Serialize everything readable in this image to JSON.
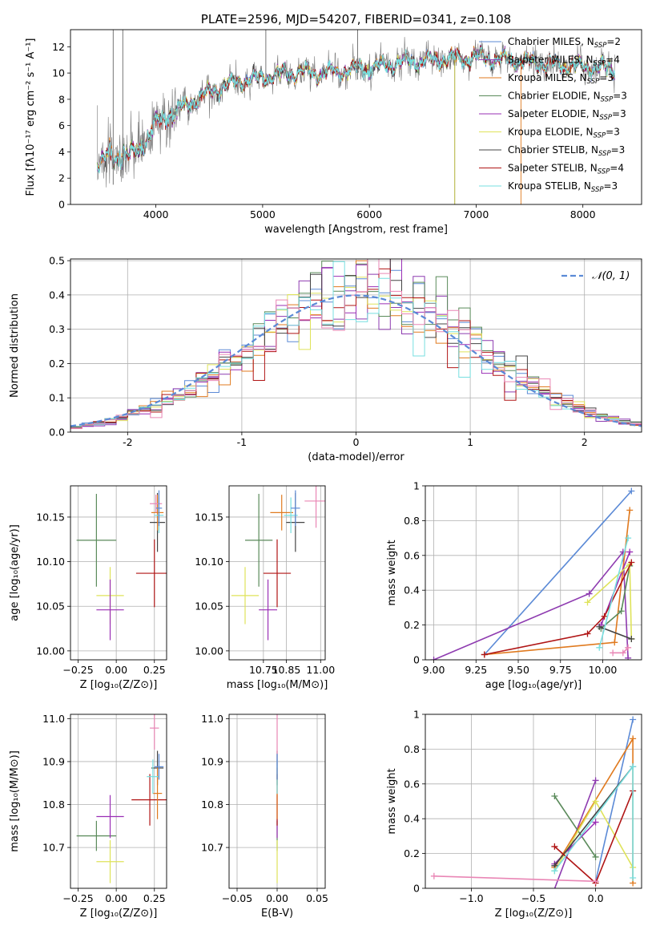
{
  "colors": {
    "Chabrier MILES": "#5b8ad6",
    "Salpeter MILES": "#8e3bb0",
    "Kroupa MILES": "#e07a1f",
    "Chabrier ELODIE": "#5a8a5a",
    "Salpeter ELODIE": "#9a2fb5",
    "Kroupa ELODIE": "#dfe35a",
    "Chabrier STELIB": "#444444",
    "Salpeter STELIB": "#b01515",
    "Kroupa STELIB": "#77dfe0",
    "pink": "#e986b5",
    "normal": "#5b8ad6",
    "spectrum": "#7a7a7a"
  },
  "chart_data": [
    {
      "id": "spectrum",
      "type": "line",
      "title": "PLATE=2596, MJD=54207, FIBERID=0341, z=0.108",
      "xlabel": "wavelength [Angstrom, rest frame]",
      "ylabel": "Flux [fλ10⁻¹⁷ erg cm⁻² s⁻¹ A⁻¹]",
      "xlim": [
        3200,
        8550
      ],
      "ylim": [
        0,
        13.3
      ],
      "xticks": [
        4000,
        5000,
        6000,
        7000,
        8000
      ],
      "yticks": [
        0,
        2,
        4,
        6,
        8,
        10,
        12
      ],
      "legend_position": "right",
      "legend": [
        {
          "label": "Chabrier MILES, N",
          "sub": "SSP",
          "suffix": "=2",
          "color": "#5b8ad6"
        },
        {
          "label": "Salpeter MILES, N",
          "sub": "SSP",
          "suffix": "=4",
          "color": "#8e3bb0"
        },
        {
          "label": "Kroupa MILES, N",
          "sub": "SSP",
          "suffix": "=3",
          "color": "#e07a1f"
        },
        {
          "label": "Chabrier ELODIE, N",
          "sub": "SSP",
          "suffix": "=3",
          "color": "#5a8a5a"
        },
        {
          "label": "Salpeter ELODIE, N",
          "sub": "SSP",
          "suffix": "=3",
          "color": "#9a2fb5"
        },
        {
          "label": "Kroupa ELODIE, N",
          "sub": "SSP",
          "suffix": "=3",
          "color": "#dfe35a"
        },
        {
          "label": "Chabrier STELIB, N",
          "sub": "SSP",
          "suffix": "=3",
          "color": "#444444"
        },
        {
          "label": "Salpeter STELIB, N",
          "sub": "SSP",
          "suffix": "=4",
          "color": "#b01515"
        },
        {
          "label": "Kroupa STELIB, N",
          "sub": "SSP",
          "suffix": "=3",
          "color": "#77dfe0"
        }
      ],
      "continuum": {
        "wavelength": [
          3450,
          3600,
          3800,
          3900,
          4000,
          4200,
          4400,
          4600,
          4800,
          5000,
          5200,
          5500,
          5800,
          6000,
          6300,
          6600,
          7000,
          7400,
          7800,
          8300
        ],
        "flux": [
          3.3,
          3.6,
          3.8,
          4.8,
          6.2,
          7.2,
          8.1,
          8.9,
          9.4,
          9.6,
          10.0,
          10.0,
          10.2,
          10.4,
          10.8,
          11.0,
          11.2,
          10.9,
          10.6,
          10.3
        ]
      }
    },
    {
      "id": "residuals",
      "type": "line",
      "xlabel": "(data-model)/error",
      "ylabel": "Normed distribution",
      "xlim": [
        -2.5,
        2.5
      ],
      "ylim": [
        0,
        0.505
      ],
      "xticks": [
        -2,
        -1,
        0,
        1,
        2
      ],
      "yticks": [
        0.0,
        0.1,
        0.2,
        0.3,
        0.4,
        0.5
      ],
      "bin_width": 0.1,
      "legend": "𝒩(0, 1)",
      "legend_position": "top-right"
    },
    {
      "id": "age_vs_Z",
      "type": "scatter",
      "xlabel": "Z [log₁₀(Z/Z⊙)]",
      "ylabel": "age  [log₁₀(age/yr)]",
      "xlim": [
        -0.3,
        0.33
      ],
      "ylim": [
        9.99,
        10.185
      ],
      "xticks": [
        -0.25,
        0.0,
        0.25
      ],
      "xticklabels": [
        "−0.25",
        "0.00",
        "0.25"
      ],
      "yticks": [
        10.0,
        10.05,
        10.1,
        10.15
      ],
      "yticklabels": [
        "10.00",
        "10.05",
        "10.10",
        "10.15"
      ],
      "points": [
        {
          "x": -0.13,
          "y": 10.124,
          "xerr": 0.13,
          "yerr": 0.052,
          "color": "#5a8a5a"
        },
        {
          "x": -0.04,
          "y": 10.062,
          "xerr": 0.09,
          "yerr": 0.032,
          "color": "#dfe35a"
        },
        {
          "x": -0.04,
          "y": 10.046,
          "xerr": 0.09,
          "yerr": 0.034,
          "color": "#9a2fb5"
        },
        {
          "x": 0.25,
          "y": 10.087,
          "xerr": 0.12,
          "yerr": 0.038,
          "color": "#b01515"
        },
        {
          "x": 0.27,
          "y": 10.144,
          "xerr": 0.05,
          "yerr": 0.033,
          "color": "#444444"
        },
        {
          "x": 0.27,
          "y": 10.155,
          "xerr": 0.04,
          "yerr": 0.02,
          "color": "#e07a1f"
        },
        {
          "x": 0.26,
          "y": 10.165,
          "xerr": 0.04,
          "yerr": 0.01,
          "color": "#e986b5"
        },
        {
          "x": 0.28,
          "y": 10.152,
          "xerr": 0.03,
          "yerr": 0.02,
          "color": "#77dfe0"
        },
        {
          "x": 0.28,
          "y": 10.16,
          "xerr": 0.02,
          "yerr": 0.02,
          "color": "#5b8ad6"
        }
      ]
    },
    {
      "id": "age_vs_mass",
      "type": "scatter",
      "xlabel": "mass [log₁₀(M/M⊙)]",
      "ylabel": "",
      "xlim": [
        10.6,
        11.02
      ],
      "ylim": [
        9.99,
        10.185
      ],
      "xticks": [
        10.75,
        10.85,
        11.0
      ],
      "xticklabels": [
        "10.75",
        "10.85",
        "11.00"
      ],
      "yticks": [
        10.0,
        10.05,
        10.1,
        10.15
      ],
      "yticklabels": [
        "10.00",
        "10.05",
        "10.10",
        "10.15"
      ],
      "points": [
        {
          "x": 10.73,
          "y": 10.124,
          "xerr": 0.06,
          "yerr": 0.052,
          "color": "#5a8a5a"
        },
        {
          "x": 10.67,
          "y": 10.062,
          "xerr": 0.06,
          "yerr": 0.032,
          "color": "#dfe35a"
        },
        {
          "x": 10.77,
          "y": 10.046,
          "xerr": 0.04,
          "yerr": 0.034,
          "color": "#9a2fb5"
        },
        {
          "x": 10.81,
          "y": 10.087,
          "xerr": 0.06,
          "yerr": 0.038,
          "color": "#b01515"
        },
        {
          "x": 10.89,
          "y": 10.144,
          "xerr": 0.04,
          "yerr": 0.033,
          "color": "#444444"
        },
        {
          "x": 10.83,
          "y": 10.155,
          "xerr": 0.05,
          "yerr": 0.02,
          "color": "#e07a1f"
        },
        {
          "x": 10.98,
          "y": 10.168,
          "xerr": 0.05,
          "yerr": 0.03,
          "color": "#e986b5"
        },
        {
          "x": 10.87,
          "y": 10.152,
          "xerr": 0.03,
          "yerr": 0.02,
          "color": "#77dfe0"
        },
        {
          "x": 10.89,
          "y": 10.16,
          "xerr": 0.02,
          "yerr": 0.02,
          "color": "#5b8ad6"
        }
      ]
    },
    {
      "id": "mass_weight_vs_age",
      "type": "line",
      "xlabel": "age  [log₁₀(age/yr)]",
      "ylabel": "mass weight",
      "xlim": [
        8.95,
        10.23
      ],
      "ylim": [
        0,
        1.0
      ],
      "xticks": [
        9.0,
        9.25,
        9.5,
        9.75,
        10.0
      ],
      "xticklabels": [
        "9.00",
        "9.25",
        "9.50",
        "9.75",
        "10.00"
      ],
      "yticks": [
        0.0,
        0.2,
        0.4,
        0.6,
        0.8,
        1.0
      ],
      "series": [
        {
          "color": "#5b8ad6",
          "x": [
            9.3,
            10.17
          ],
          "y": [
            0.03,
            0.97
          ]
        },
        {
          "color": "#8e3bb0",
          "x": [
            9.0,
            9.92,
            10.12,
            10.15
          ],
          "y": [
            0.0,
            0.38,
            0.62,
            0.01
          ]
        },
        {
          "color": "#e07a1f",
          "x": [
            9.3,
            10.07,
            10.16
          ],
          "y": [
            0.03,
            0.1,
            0.86
          ]
        },
        {
          "color": "#5a8a5a",
          "x": [
            9.99,
            10.11,
            10.16
          ],
          "y": [
            0.18,
            0.28,
            0.54
          ]
        },
        {
          "color": "#9a2fb5",
          "x": [
            9.99,
            10.16
          ],
          "y": [
            0.2,
            0.62
          ]
        },
        {
          "color": "#dfe35a",
          "x": [
            9.91,
            10.16,
            10.17
          ],
          "y": [
            0.33,
            0.55,
            0.12
          ]
        },
        {
          "color": "#444444",
          "x": [
            9.98,
            10.17
          ],
          "y": [
            0.19,
            0.12
          ]
        },
        {
          "color": "#b01515",
          "x": [
            9.3,
            9.91,
            10.01,
            10.17
          ],
          "y": [
            0.03,
            0.15,
            0.25,
            0.56
          ]
        },
        {
          "color": "#77dfe0",
          "x": [
            9.98,
            10.15
          ],
          "y": [
            0.07,
            0.7
          ]
        },
        {
          "color": "#e986b5",
          "x": [
            10.06,
            10.12,
            10.15
          ],
          "y": [
            0.04,
            0.04,
            0.07
          ]
        }
      ]
    },
    {
      "id": "mass_vs_Z",
      "type": "scatter",
      "xlabel": "Z [log₁₀(Z/Z⊙)]",
      "ylabel": "mass [log₁₀(M/M⊙)]",
      "xlim": [
        -0.3,
        0.33
      ],
      "ylim": [
        10.605,
        11.01
      ],
      "xticks": [
        -0.25,
        0.0,
        0.25
      ],
      "xticklabels": [
        "−0.25",
        "0.00",
        "0.25"
      ],
      "yticks": [
        10.7,
        10.8,
        10.9,
        11.0
      ],
      "yticklabels": [
        "10.7",
        "10.8",
        "10.9",
        "11.0"
      ],
      "points": [
        {
          "x": -0.13,
          "y": 10.727,
          "xerr": 0.13,
          "yerr": 0.035,
          "color": "#5a8a5a"
        },
        {
          "x": -0.04,
          "y": 10.667,
          "xerr": 0.09,
          "yerr": 0.05,
          "color": "#dfe35a"
        },
        {
          "x": -0.04,
          "y": 10.772,
          "xerr": 0.09,
          "yerr": 0.05,
          "color": "#9a2fb5"
        },
        {
          "x": 0.22,
          "y": 10.811,
          "xerr": 0.12,
          "yerr": 0.06,
          "color": "#b01515"
        },
        {
          "x": 0.27,
          "y": 10.885,
          "xerr": 0.04,
          "yerr": 0.04,
          "color": "#444444"
        },
        {
          "x": 0.27,
          "y": 10.826,
          "xerr": 0.03,
          "yerr": 0.06,
          "color": "#e07a1f"
        },
        {
          "x": 0.25,
          "y": 10.978,
          "xerr": 0.03,
          "yerr": 0.05,
          "color": "#e986b5"
        },
        {
          "x": 0.24,
          "y": 10.865,
          "xerr": 0.04,
          "yerr": 0.04,
          "color": "#77dfe0"
        },
        {
          "x": 0.28,
          "y": 10.888,
          "xerr": 0.03,
          "yerr": 0.03,
          "color": "#5b8ad6"
        }
      ]
    },
    {
      "id": "mass_vs_EBV",
      "type": "scatter",
      "xlabel": "E(B-V)",
      "ylabel": "",
      "xlim": [
        -0.06,
        0.06
      ],
      "ylim": [
        10.605,
        11.01
      ],
      "xticks": [
        -0.05,
        0.0,
        0.05
      ],
      "xticklabels": [
        "−0.05",
        "0.00",
        "0.05"
      ],
      "yticks": [
        10.7,
        10.8,
        10.9,
        11.0
      ],
      "yticklabels": [
        "10.7",
        "10.8",
        "10.9",
        "11.0"
      ],
      "points": [
        {
          "x": 0.0,
          "y": 10.727,
          "xerr": 0,
          "yerr": 0.035,
          "color": "#5a8a5a"
        },
        {
          "x": 0.0,
          "y": 10.667,
          "xerr": 0,
          "yerr": 0.05,
          "color": "#dfe35a"
        },
        {
          "x": 0.0,
          "y": 10.772,
          "xerr": 0,
          "yerr": 0.05,
          "color": "#9a2fb5"
        },
        {
          "x": 0.0,
          "y": 10.811,
          "xerr": 0,
          "yerr": 0.06,
          "color": "#b01515"
        },
        {
          "x": 0.0,
          "y": 10.885,
          "xerr": 0,
          "yerr": 0.04,
          "color": "#444444"
        },
        {
          "x": 0.0,
          "y": 10.826,
          "xerr": 0,
          "yerr": 0.06,
          "color": "#e07a1f"
        },
        {
          "x": 0.0,
          "y": 10.95,
          "xerr": 0,
          "yerr": 0.06,
          "color": "#e986b5"
        },
        {
          "x": 0.0,
          "y": 10.865,
          "xerr": 0,
          "yerr": 0.04,
          "color": "#77dfe0"
        },
        {
          "x": 0.0,
          "y": 10.888,
          "xerr": 0,
          "yerr": 0.03,
          "color": "#5b8ad6"
        }
      ]
    },
    {
      "id": "mass_weight_vs_Z",
      "type": "line",
      "xlabel": "Z [log₁₀(Z/Z⊙)]",
      "ylabel": "mass weight",
      "xlim": [
        -1.37,
        0.37
      ],
      "ylim": [
        0,
        1.0
      ],
      "xticks": [
        -1.0,
        -0.5,
        0.0
      ],
      "xticklabels": [
        "−1.0",
        "−0.5",
        "0.0"
      ],
      "yticks": [
        0.0,
        0.2,
        0.4,
        0.6,
        0.8,
        1.0
      ],
      "series": [
        {
          "color": "#5b8ad6",
          "x": [
            0.0,
            0.3
          ],
          "y": [
            0.04,
            0.97
          ]
        },
        {
          "color": "#8e3bb0",
          "x": [
            -0.35,
            0.0
          ],
          "y": [
            -0.04,
            0.62
          ]
        },
        {
          "color": "#e07a1f",
          "x": [
            -0.33,
            0.3,
            0.3
          ],
          "y": [
            0.12,
            0.86,
            0.03
          ]
        },
        {
          "color": "#5a8a5a",
          "x": [
            -0.33,
            0.0
          ],
          "y": [
            0.53,
            0.18
          ]
        },
        {
          "color": "#9a2fb5",
          "x": [
            -0.33,
            0.0
          ],
          "y": [
            0.14,
            0.38
          ]
        },
        {
          "color": "#dfe35a",
          "x": [
            -0.33,
            0.0,
            0.3
          ],
          "y": [
            0.1,
            0.5,
            0.12
          ]
        },
        {
          "color": "#444444",
          "x": [
            -0.33,
            0.3
          ],
          "y": [
            0.13,
            0.7
          ]
        },
        {
          "color": "#b01515",
          "x": [
            -0.33,
            0.0,
            0.3
          ],
          "y": [
            0.24,
            0.03,
            0.56
          ]
        },
        {
          "color": "#77dfe0",
          "x": [
            -0.33,
            0.3,
            0.3
          ],
          "y": [
            0.1,
            0.7,
            0.06
          ]
        },
        {
          "color": "#e986b5",
          "x": [
            -1.3,
            0.0
          ],
          "y": [
            0.07,
            0.04
          ]
        }
      ]
    }
  ]
}
